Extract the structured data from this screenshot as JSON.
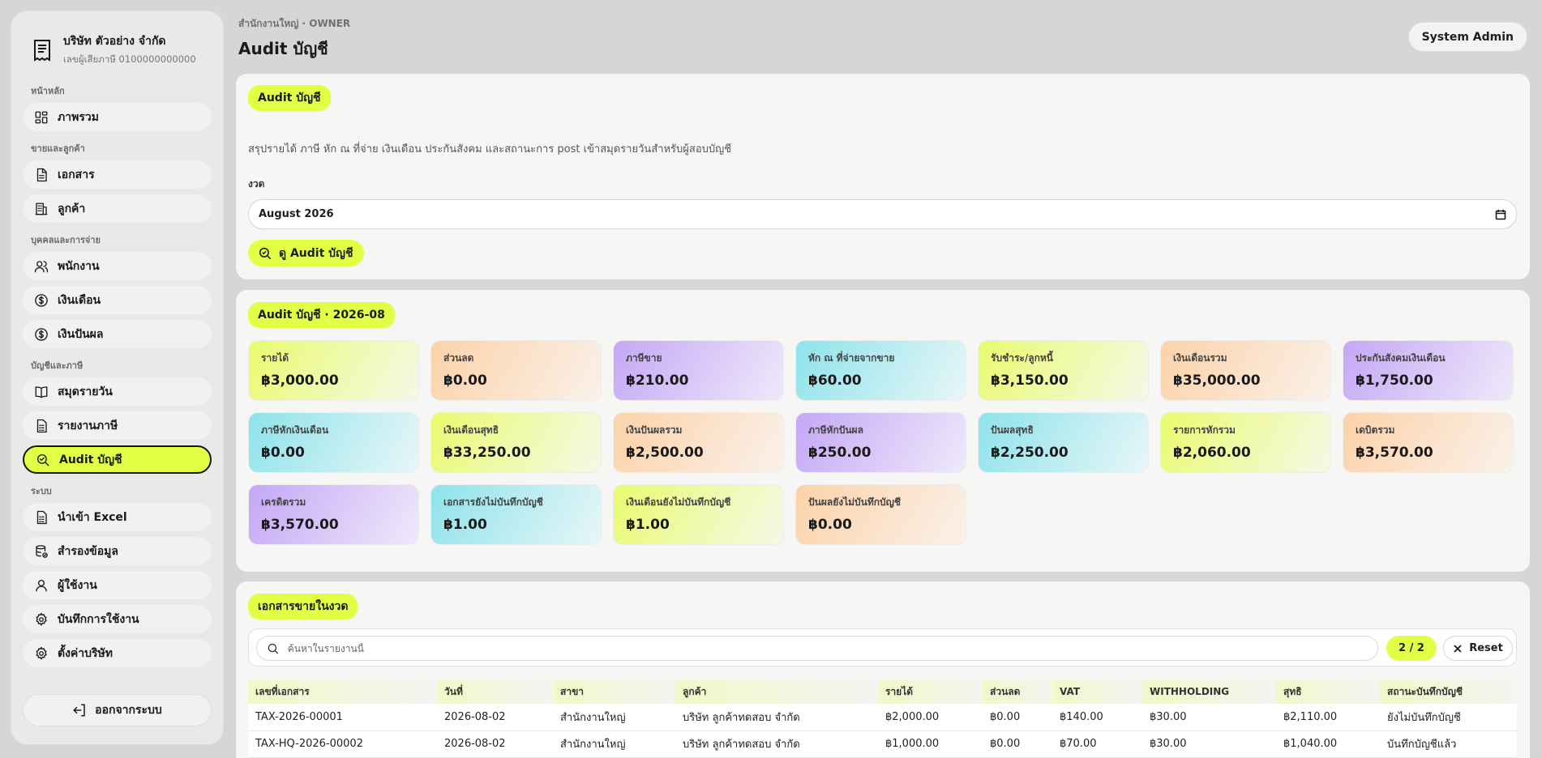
{
  "company": {
    "name": "บริษัท ตัวอย่าง จำกัด",
    "tax_id": "เลขผู้เสียภาษี 0100000000000"
  },
  "sidebar": {
    "sections": [
      {
        "label": "หน้าหลัก",
        "items": [
          {
            "label": "ภาพรวม",
            "icon": "dashboard-icon"
          }
        ]
      },
      {
        "label": "ขายและลูกค้า",
        "items": [
          {
            "label": "เอกสาร",
            "icon": "document-icon"
          },
          {
            "label": "ลูกค้า",
            "icon": "building-icon"
          }
        ]
      },
      {
        "label": "บุคคลและการจ่าย",
        "items": [
          {
            "label": "พนักงาน",
            "icon": "users-icon"
          },
          {
            "label": "เงินเดือน",
            "icon": "dollar-icon"
          },
          {
            "label": "เงินปันผล",
            "icon": "dollar-icon"
          }
        ]
      },
      {
        "label": "บัญชีและภาษี",
        "items": [
          {
            "label": "สมุดรายวัน",
            "icon": "book-icon"
          },
          {
            "label": "รายงานภาษี",
            "icon": "report-icon"
          },
          {
            "label": "Audit บัญชี",
            "icon": "search-check-icon",
            "active": true
          }
        ]
      },
      {
        "label": "ระบบ",
        "items": [
          {
            "label": "นำเข้า Excel",
            "icon": "import-icon"
          },
          {
            "label": "สำรองข้อมูล",
            "icon": "database-icon"
          },
          {
            "label": "ผู้ใช้งาน",
            "icon": "user-icon"
          },
          {
            "label": "บันทึกการใช้งาน",
            "icon": "gear-icon"
          },
          {
            "label": "ตั้งค่าบริษัท",
            "icon": "gear-icon"
          }
        ]
      }
    ],
    "logout_label": "ออกจากระบบ"
  },
  "header": {
    "breadcrumb": "สำนักงานใหญ่ · OWNER",
    "title": "Audit บัญชี",
    "user": "System Admin"
  },
  "filter_card": {
    "pill": "Audit บัญชี",
    "description": "สรุปรายได้ ภาษี หัก ณ ที่จ่าย เงินเดือน ประกันสังคม และสถานะการ post เข้าสมุดรายวันสำหรับผู้สอบบัญชี",
    "period_label": "งวด",
    "period_value": "August 2026",
    "view_button": "ดู Audit บัญชี"
  },
  "summary_card": {
    "pill": "Audit บัญชี · 2026-08",
    "metrics": [
      {
        "label": "รายได้",
        "value": "฿3,000.00",
        "tone": "lime"
      },
      {
        "label": "ส่วนลด",
        "value": "฿0.00",
        "tone": "peach"
      },
      {
        "label": "ภาษีขาย",
        "value": "฿210.00",
        "tone": "purple"
      },
      {
        "label": "หัก ณ ที่จ่ายจากขาย",
        "value": "฿60.00",
        "tone": "cyan"
      },
      {
        "label": "รับชำระ/ลูกหนี้",
        "value": "฿3,150.00",
        "tone": "lime"
      },
      {
        "label": "เงินเดือนรวม",
        "value": "฿35,000.00",
        "tone": "peach"
      },
      {
        "label": "ประกันสังคมเงินเดือน",
        "value": "฿1,750.00",
        "tone": "purple"
      },
      {
        "label": "ภาษีหักเงินเดือน",
        "value": "฿0.00",
        "tone": "cyan"
      },
      {
        "label": "เงินเดือนสุทธิ",
        "value": "฿33,250.00",
        "tone": "lime"
      },
      {
        "label": "เงินปันผลรวม",
        "value": "฿2,500.00",
        "tone": "peach"
      },
      {
        "label": "ภาษีหักปันผล",
        "value": "฿250.00",
        "tone": "purple"
      },
      {
        "label": "ปันผลสุทธิ",
        "value": "฿2,250.00",
        "tone": "cyan"
      },
      {
        "label": "รายการหักรวม",
        "value": "฿2,060.00",
        "tone": "lime"
      },
      {
        "label": "เดบิตรวม",
        "value": "฿3,570.00",
        "tone": "peach"
      },
      {
        "label": "เครดิตรวม",
        "value": "฿3,570.00",
        "tone": "purple"
      },
      {
        "label": "เอกสารยังไม่บันทึกบัญชี",
        "value": "฿1.00",
        "tone": "cyan"
      },
      {
        "label": "เงินเดือนยังไม่บันทึกบัญชี",
        "value": "฿1.00",
        "tone": "lime"
      },
      {
        "label": "ปันผลยังไม่บันทึกบัญชี",
        "value": "฿0.00",
        "tone": "peach"
      }
    ]
  },
  "sales_card": {
    "pill": "เอกสารขายในงวด",
    "search_placeholder": "ค้นหาในรายงานนี้",
    "count": "2 / 2",
    "reset": "Reset",
    "columns": [
      "เลขที่เอกสาร",
      "วันที่",
      "สาขา",
      "ลูกค้า",
      "รายได้",
      "ส่วนลด",
      "VAT",
      "WITHHOLDING",
      "สุทธิ",
      "สถานะบันทึกบัญชี"
    ],
    "rows": [
      [
        "TAX-2026-00001",
        "2026-08-02",
        "สำนักงานใหญ่",
        "บริษัท ลูกค้าทดสอบ จำกัด",
        "฿2,000.00",
        "฿0.00",
        "฿140.00",
        "฿30.00",
        "฿2,110.00",
        "ยังไม่บันทึกบัญชี"
      ],
      [
        "TAX-HQ-2026-00002",
        "2026-08-02",
        "สำนักงานใหญ่",
        "บริษัท ลูกค้าทดสอบ จำกัด",
        "฿1,000.00",
        "฿0.00",
        "฿70.00",
        "฿30.00",
        "฿1,040.00",
        "บันทึกบัญชีแล้ว"
      ]
    ]
  }
}
